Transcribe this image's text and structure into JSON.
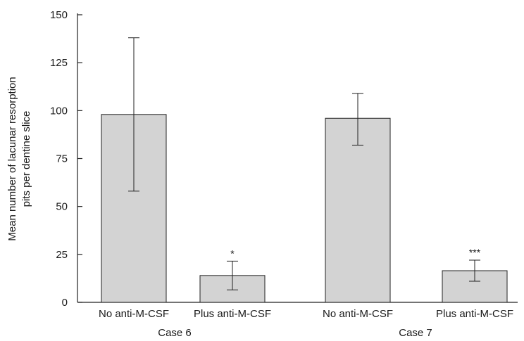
{
  "chart_data": {
    "type": "bar",
    "ylabel_lines": [
      "Mean number of lacunar resorption",
      "pits per dentine slice"
    ],
    "ylim": [
      0,
      150
    ],
    "yticks": [
      0,
      25,
      50,
      75,
      100,
      125,
      150
    ],
    "grid": false,
    "legend": "none",
    "bar_color": "#d3d3d3",
    "groups": [
      {
        "label": "Case 6",
        "bars": [
          0,
          1
        ]
      },
      {
        "label": "Case 7",
        "bars": [
          2,
          3
        ]
      }
    ],
    "bars": [
      {
        "category": "No anti-M-CSF",
        "value": 98,
        "err_low": 58,
        "err_high": 138,
        "annotation": ""
      },
      {
        "category": "Plus anti-M-CSF",
        "value": 14,
        "err_low": 6.5,
        "err_high": 21.5,
        "annotation": "*"
      },
      {
        "category": "No anti-M-CSF",
        "value": 96,
        "err_low": 82,
        "err_high": 109,
        "annotation": ""
      },
      {
        "category": "Plus anti-M-CSF",
        "value": 16.5,
        "err_low": 11,
        "err_high": 22,
        "annotation": "***"
      }
    ]
  }
}
